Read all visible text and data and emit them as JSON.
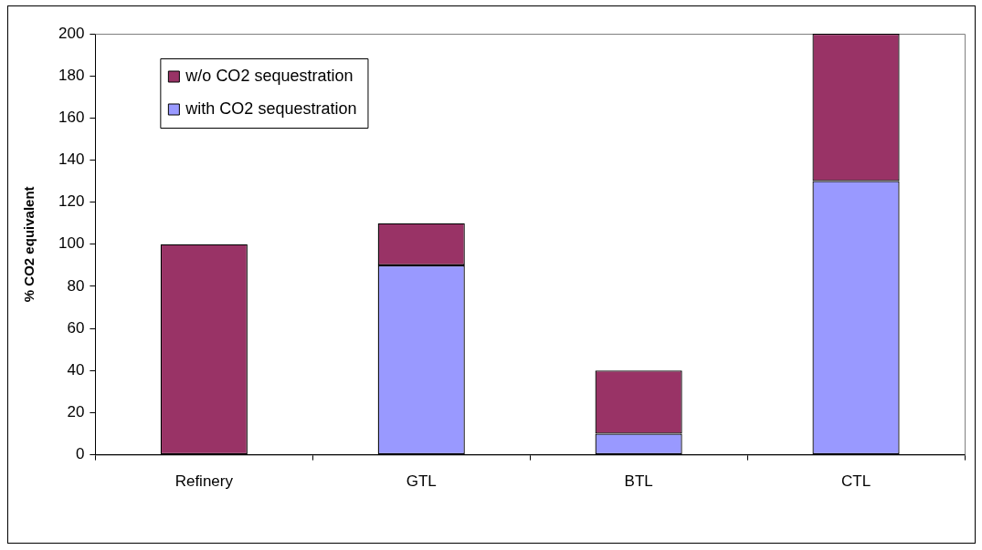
{
  "chart_data": {
    "type": "bar",
    "ylabel": "% CO2 equivalent",
    "categories": [
      "Refinery",
      "GTL",
      "BTL",
      "CTL"
    ],
    "stacked": true,
    "legend": "top left",
    "grid": false,
    "series": [
      {
        "name": "with CO2 sequestration",
        "color": "#9999ff",
        "values": [
          0,
          90,
          10,
          130
        ]
      },
      {
        "name": "w/o CO2 sequestration",
        "color": "#993366",
        "values": [
          100,
          20,
          30,
          70
        ]
      }
    ],
    "ylim": [
      0,
      200
    ],
    "yticks": [
      0,
      20,
      40,
      60,
      80,
      100,
      120,
      140,
      160,
      180,
      200
    ]
  }
}
